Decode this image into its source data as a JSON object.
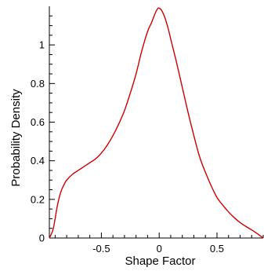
{
  "chart_data": {
    "type": "line",
    "title": "",
    "xlabel": "Shape Factor",
    "ylabel": "Probability Density",
    "xlim": [
      -0.95,
      0.9
    ],
    "ylim": [
      0,
      1.2
    ],
    "x_ticks": [
      -0.5,
      0,
      0.5
    ],
    "x_tick_labels": [
      "-0.5",
      "0",
      "0.5"
    ],
    "y_ticks": [
      0,
      0.2,
      0.4,
      0.6,
      0.8,
      1
    ],
    "y_tick_labels": [
      "0",
      "0.2",
      "0.4",
      "0.6",
      "0.8",
      "1"
    ],
    "grid": false,
    "series": [
      {
        "color": "#cc0000",
        "x": [
          -0.95,
          -0.92,
          -0.9,
          -0.88,
          -0.85,
          -0.82,
          -0.8,
          -0.75,
          -0.7,
          -0.65,
          -0.6,
          -0.55,
          -0.5,
          -0.45,
          -0.4,
          -0.35,
          -0.3,
          -0.25,
          -0.2,
          -0.15,
          -0.1,
          -0.07,
          -0.05,
          -0.03,
          -0.01,
          0.0,
          0.02,
          0.05,
          0.08,
          0.1,
          0.15,
          0.2,
          0.25,
          0.3,
          0.35,
          0.4,
          0.45,
          0.5,
          0.55,
          0.6,
          0.65,
          0.7,
          0.75,
          0.8,
          0.85,
          0.9
        ],
        "y": [
          0.0,
          0.04,
          0.1,
          0.17,
          0.24,
          0.28,
          0.3,
          0.33,
          0.35,
          0.37,
          0.39,
          0.41,
          0.44,
          0.48,
          0.53,
          0.59,
          0.66,
          0.75,
          0.85,
          0.97,
          1.07,
          1.11,
          1.14,
          1.17,
          1.19,
          1.19,
          1.18,
          1.14,
          1.08,
          1.03,
          0.91,
          0.78,
          0.65,
          0.53,
          0.42,
          0.34,
          0.27,
          0.21,
          0.17,
          0.135,
          0.105,
          0.08,
          0.06,
          0.042,
          0.022,
          0.0
        ]
      }
    ]
  }
}
